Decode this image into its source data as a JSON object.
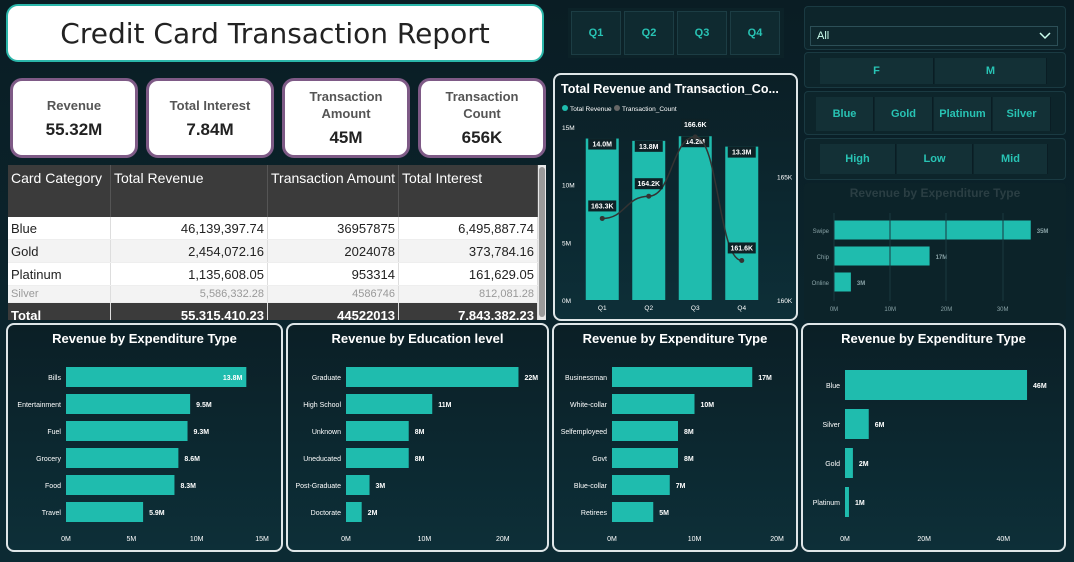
{
  "title": "Credit Card Transaction Report",
  "kpis": [
    {
      "label": "Revenue",
      "value": "55.32M"
    },
    {
      "label": "Total Interest",
      "value": "7.84M"
    },
    {
      "label": "Transaction Amount",
      "value": "45M"
    },
    {
      "label": "Transaction Count",
      "value": "656K"
    }
  ],
  "quarter_slicer": [
    "Q1",
    "Q2",
    "Q3",
    "Q4"
  ],
  "dropdown": {
    "value": "All"
  },
  "gender_slicer": [
    "F",
    "M"
  ],
  "category_slicer": [
    "Blue",
    "Gold",
    "Platinum",
    "Silver"
  ],
  "income_slicer": [
    "High",
    "Low",
    "Mid"
  ],
  "table": {
    "headers": [
      "Card Category",
      "Total Revenue",
      "Transaction Amount",
      "Total Interest"
    ],
    "rows": [
      [
        "Blue",
        "46,139,397.74",
        "36957875",
        "6,495,887.74"
      ],
      [
        "Gold",
        "2,454,072.16",
        "2024078",
        "373,784.16"
      ],
      [
        "Platinum",
        "1,135,608.05",
        "953314",
        "161,629.05"
      ],
      [
        "Silver",
        "5,586,332.28",
        "4586746",
        "812,081.28"
      ]
    ],
    "total": [
      "Total",
      "55,315,410.23",
      "44522013",
      "7,843,382.23"
    ]
  },
  "colors": {
    "accent": "#1fbcae",
    "line": "#333333",
    "panel_border": "#dfe6e8"
  },
  "chart_data": [
    {
      "id": "combo",
      "type": "bar",
      "title": "Total Revenue and Transaction_Co...",
      "legend": [
        "Total Revenue",
        "Transaction_Count"
      ],
      "categories": [
        "Q1",
        "Q2",
        "Q3",
        "Q4"
      ],
      "series": [
        {
          "name": "Total Revenue",
          "values": [
            14.0,
            13.8,
            14.2,
            13.3
          ],
          "labels": [
            "14.0M",
            "13.8M",
            "14.2M",
            "13.3M"
          ]
        },
        {
          "name": "Transaction_Count",
          "values": [
            163.3,
            164.2,
            166.6,
            161.6
          ],
          "labels": [
            "163.3K",
            "164.2K",
            "166.6K",
            "161.6K"
          ]
        }
      ],
      "y_ticks": [
        "0M",
        "5M",
        "10M",
        "15M"
      ],
      "y_range": [
        0,
        15
      ],
      "y2_ticks": [
        "160K",
        "165K"
      ],
      "y2_range": [
        160,
        167
      ]
    },
    {
      "id": "small-exp",
      "type": "bar",
      "title": "Revenue by Expenditure Type",
      "categories": [
        "Swipe",
        "Chip",
        "Online"
      ],
      "values": [
        35,
        17,
        3
      ],
      "labels": [
        "35M",
        "17M",
        "3M"
      ],
      "x_ticks": [
        "0M",
        "10M",
        "20M",
        "30M"
      ],
      "x_range": [
        0,
        37
      ]
    },
    {
      "id": "exp",
      "type": "bar",
      "title": "Revenue by Expenditure Type",
      "categories": [
        "Bills",
        "Entertainment",
        "Fuel",
        "Grocery",
        "Food",
        "Travel"
      ],
      "values": [
        13.8,
        9.5,
        9.3,
        8.6,
        8.3,
        5.9
      ],
      "labels": [
        "13.8M",
        "9.5M",
        "9.3M",
        "8.6M",
        "8.3M",
        "5.9M"
      ],
      "x_ticks": [
        "0M",
        "5M",
        "10M",
        "15M"
      ],
      "x_range": [
        0,
        15
      ]
    },
    {
      "id": "edu",
      "type": "bar",
      "title": "Revenue by Education level",
      "categories": [
        "Graduate",
        "High School",
        "Unknown",
        "Uneducated",
        "Post-Graduate",
        "Doctorate"
      ],
      "values": [
        22,
        11,
        8,
        8,
        3,
        2
      ],
      "labels": [
        "22M",
        "11M",
        "8M",
        "8M",
        "3M",
        "2M"
      ],
      "x_ticks": [
        "0M",
        "10M",
        "20M"
      ],
      "x_range": [
        0,
        25
      ]
    },
    {
      "id": "job",
      "type": "bar",
      "title": "Revenue by Expenditure Type",
      "categories": [
        "Businessman",
        "White-collar",
        "Selfemployeed",
        "Govt",
        "Blue-collar",
        "Retirees"
      ],
      "values": [
        17,
        10,
        8,
        8,
        7,
        5
      ],
      "labels": [
        "17M",
        "10M",
        "8M",
        "8M",
        "7M",
        "5M"
      ],
      "x_ticks": [
        "0M",
        "10M",
        "20M"
      ],
      "x_range": [
        0,
        20
      ]
    },
    {
      "id": "cat",
      "type": "bar",
      "title": "Revenue by Expenditure Type",
      "categories": [
        "Blue",
        "Silver",
        "Gold",
        "Platinum"
      ],
      "values": [
        46,
        6,
        2,
        1
      ],
      "labels": [
        "46M",
        "6M",
        "2M",
        "1M"
      ],
      "x_ticks": [
        "0M",
        "20M",
        "40M"
      ],
      "x_range": [
        0,
        47
      ]
    }
  ]
}
